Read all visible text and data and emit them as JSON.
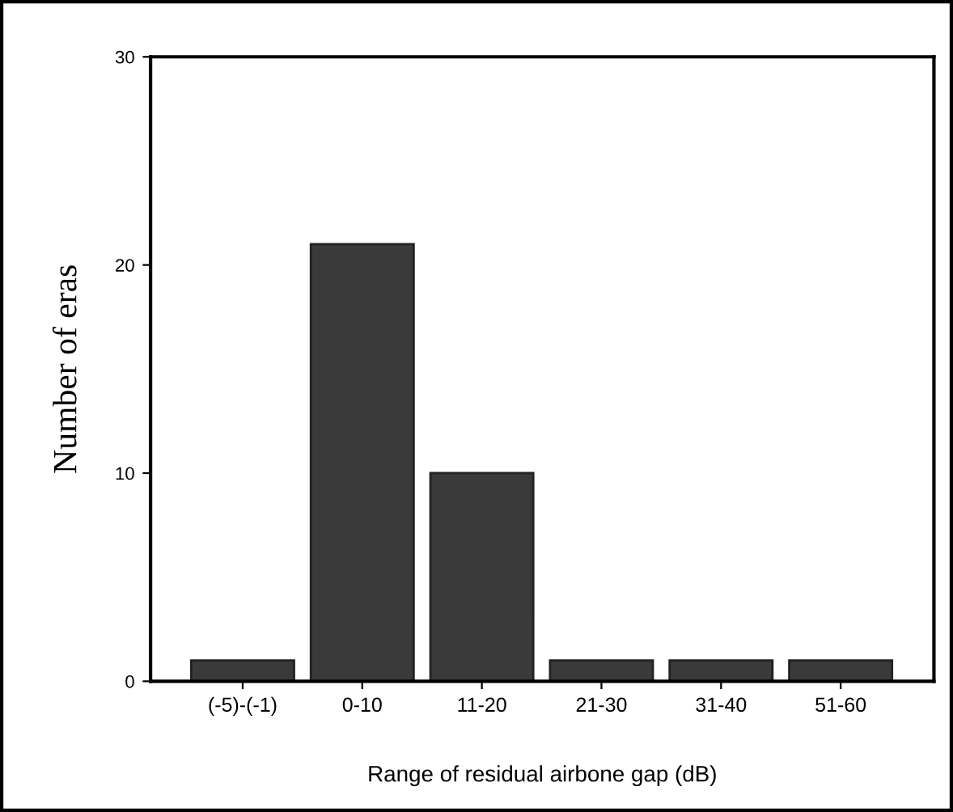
{
  "chart_data": {
    "type": "bar",
    "categories": [
      "(-5)-(-1)",
      "0-10",
      "11-20",
      "21-30",
      "31-40",
      "51-60"
    ],
    "values": [
      1,
      21,
      10,
      1,
      1,
      1
    ],
    "color": "#3a3a3a",
    "xlabel": "Range of residual airbone gap (dB)",
    "ylabel": "Number of eras",
    "ylim": [
      0,
      30
    ],
    "yticks": [
      0,
      10,
      20,
      30
    ],
    "grid": false,
    "legend": false
  }
}
